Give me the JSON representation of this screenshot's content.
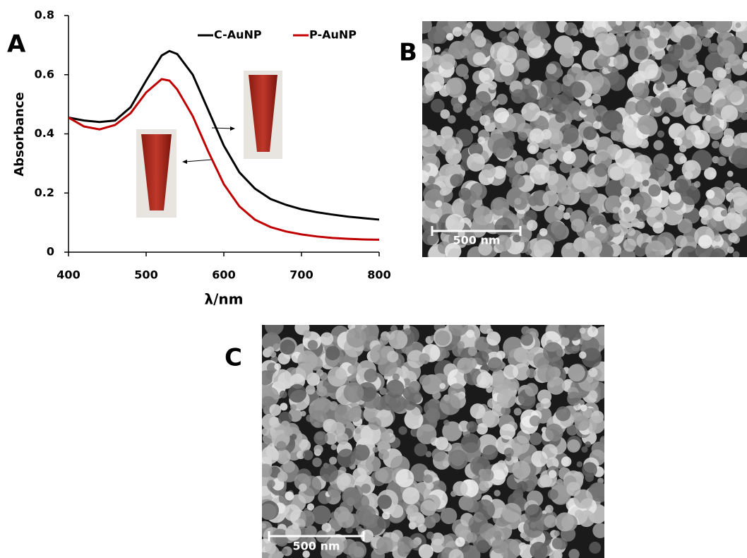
{
  "chart_data": {
    "type": "line",
    "panel_label": "A",
    "x_label": "λ/nm",
    "y_label": "Absorbance",
    "x": [
      400,
      420,
      440,
      460,
      480,
      500,
      520,
      530,
      540,
      560,
      580,
      600,
      620,
      640,
      660,
      680,
      700,
      720,
      740,
      760,
      780,
      800
    ],
    "series": [
      {
        "name": "C-AuNP",
        "color": "#000000",
        "values": [
          0.455,
          0.445,
          0.44,
          0.445,
          0.49,
          0.58,
          0.665,
          0.68,
          0.67,
          0.6,
          0.48,
          0.36,
          0.27,
          0.215,
          0.18,
          0.16,
          0.145,
          0.135,
          0.127,
          0.12,
          0.115,
          0.11
        ]
      },
      {
        "name": "P-AuNP",
        "color": "#c00000",
        "values": [
          0.455,
          0.425,
          0.415,
          0.43,
          0.47,
          0.54,
          0.585,
          0.58,
          0.55,
          0.46,
          0.34,
          0.23,
          0.155,
          0.11,
          0.085,
          0.07,
          0.06,
          0.053,
          0.048,
          0.045,
          0.043,
          0.042
        ]
      }
    ],
    "xlim": [
      400,
      800
    ],
    "ylim": [
      0,
      0.8
    ],
    "xticks": [
      400,
      500,
      600,
      700,
      800
    ],
    "yticks": [
      0,
      0.2,
      0.4,
      0.6,
      0.8
    ],
    "grid": false,
    "legend": "top-right"
  },
  "panels": [
    {
      "label": "B",
      "scale_bar": "500 nm"
    },
    {
      "label": "C",
      "scale_bar": "500 nm"
    }
  ]
}
